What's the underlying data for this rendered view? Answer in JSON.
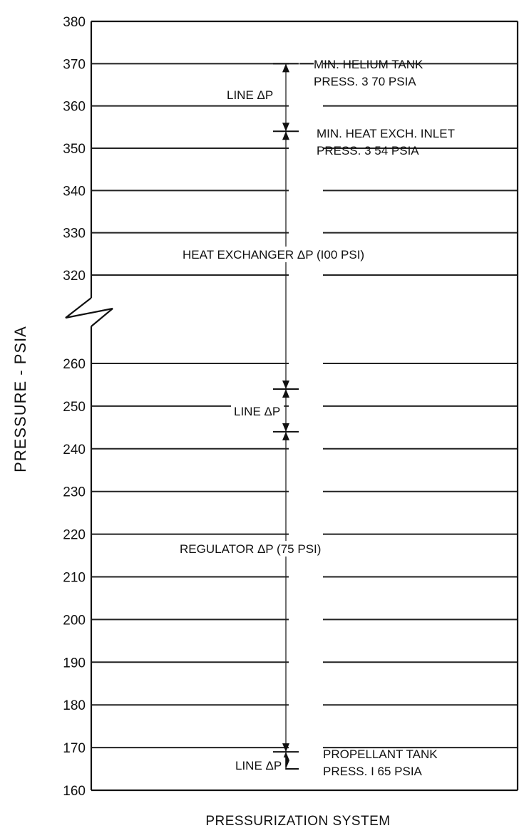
{
  "chart_data": {
    "type": "line",
    "title": "",
    "xlabel": "PRESSURIZATION SYSTEM",
    "ylabel": "PRESSURE - PSIA",
    "grid": true,
    "axis_break": {
      "from": 260,
      "to": 320
    },
    "upper_segment_range": [
      320,
      380
    ],
    "lower_segment_range": [
      160,
      260
    ],
    "y_ticks_upper": [
      320,
      330,
      340,
      350,
      360,
      370,
      380
    ],
    "y_ticks_lower": [
      160,
      170,
      180,
      190,
      200,
      210,
      220,
      230,
      240,
      250,
      260
    ],
    "points": [
      {
        "label_lines": [
          "MIN. HELIUM TANK",
          "PRESS. 3 70 PSIA"
        ],
        "value": 370
      },
      {
        "label_lines": [
          "MIN. HEAT EXCH. INLET",
          "PRESS. 3 54 PSIA"
        ],
        "value": 354
      },
      {
        "label_lines": [
          "PROPELLANT TANK",
          "PRESS. I 65 PSIA"
        ],
        "value": 165
      }
    ],
    "pressure_drops": [
      {
        "label": "LINE ΔP",
        "from": 370,
        "to": 354
      },
      {
        "label": "HEAT EXCHANGER ΔP (I00 PSI)",
        "from": 354,
        "to": 254
      },
      {
        "label": "LINE ΔP",
        "from": 254,
        "to": 244
      },
      {
        "label": "REGULATOR ΔP (75 PSI)",
        "from": 244,
        "to": 169
      },
      {
        "label": "LINE ΔP",
        "from": 169,
        "to": 165
      }
    ]
  }
}
